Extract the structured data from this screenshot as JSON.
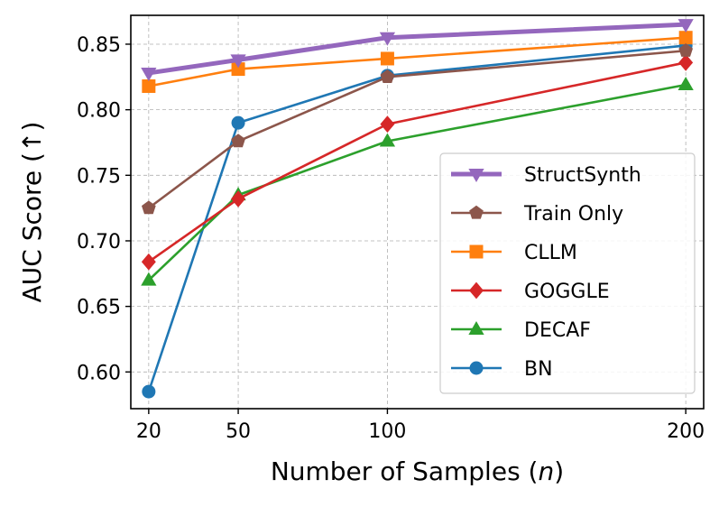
{
  "chart_data": {
    "type": "line",
    "title": "",
    "xlabel": "Number of Samples (n)",
    "xlabel_prefix": "Number of Samples (",
    "xlabel_var": "n",
    "xlabel_suffix": ")",
    "ylabel": "AUC Score (↑)",
    "x": [
      20,
      50,
      100,
      200
    ],
    "x_tick_labels": [
      "20",
      "50",
      "100",
      "200"
    ],
    "y_ticks": [
      0.6,
      0.65,
      0.7,
      0.75,
      0.8,
      0.85
    ],
    "y_tick_labels": [
      "0.60",
      "0.65",
      "0.70",
      "0.75",
      "0.80",
      "0.85"
    ],
    "ylim": [
      0.572,
      0.872
    ],
    "grid": true,
    "legend_position": "lower-right",
    "series": [
      {
        "name": "StructSynth",
        "marker": "triangle-down",
        "color": "#9467bd",
        "bold": true,
        "values": [
          0.828,
          0.838,
          0.855,
          0.865
        ]
      },
      {
        "name": "Train Only",
        "marker": "pentagon",
        "color": "#8c564b",
        "values": [
          0.725,
          0.776,
          0.825,
          0.845
        ]
      },
      {
        "name": "CLLM",
        "marker": "square",
        "color": "#ff7f0e",
        "values": [
          0.818,
          0.831,
          0.839,
          0.855
        ]
      },
      {
        "name": "GOGGLE",
        "marker": "diamond",
        "color": "#d62728",
        "values": [
          0.684,
          0.732,
          0.789,
          0.836
        ]
      },
      {
        "name": "DECAF",
        "marker": "triangle-up",
        "color": "#2ca02c",
        "values": [
          0.67,
          0.735,
          0.776,
          0.819
        ]
      },
      {
        "name": "BN",
        "marker": "circle",
        "color": "#1f77b4",
        "values": [
          0.585,
          0.79,
          0.826,
          0.849
        ]
      }
    ]
  }
}
